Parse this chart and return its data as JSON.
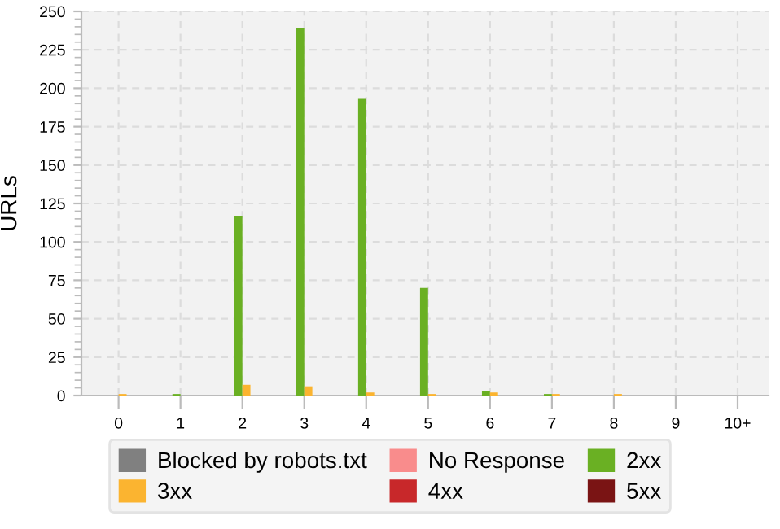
{
  "chart_data": {
    "type": "bar",
    "ylabel": "URLs",
    "categories": [
      "0",
      "1",
      "2",
      "3",
      "4",
      "5",
      "6",
      "7",
      "8",
      "9",
      "10+"
    ],
    "series": [
      {
        "name": "Blocked by robots.txt",
        "color": "#808080",
        "values": [
          0,
          0,
          0,
          0,
          0,
          0,
          0,
          0,
          0,
          0,
          0
        ]
      },
      {
        "name": "No Response",
        "color": "#f98c8c",
        "values": [
          0,
          0,
          0,
          0,
          0,
          0,
          0,
          0,
          0,
          0,
          0
        ]
      },
      {
        "name": "2xx",
        "color": "#6ab023",
        "values": [
          0,
          1,
          117,
          239,
          193,
          70,
          3,
          1,
          0,
          0,
          0
        ]
      },
      {
        "name": "3xx",
        "color": "#fbb430",
        "values": [
          1,
          0,
          7,
          6,
          2,
          1,
          2,
          1,
          1,
          0,
          0
        ]
      },
      {
        "name": "4xx",
        "color": "#c8282a",
        "values": [
          0,
          0,
          0,
          0,
          0,
          0,
          0,
          0,
          0,
          0,
          0
        ]
      },
      {
        "name": "5xx",
        "color": "#7a1414",
        "values": [
          0,
          0,
          0,
          0,
          0,
          0,
          0,
          0,
          0,
          0,
          0
        ]
      }
    ],
    "ylim": [
      0,
      250
    ],
    "yticks": [
      0,
      25,
      50,
      75,
      100,
      125,
      150,
      175,
      200,
      225,
      250
    ],
    "grid": true,
    "legend": "bottom"
  }
}
